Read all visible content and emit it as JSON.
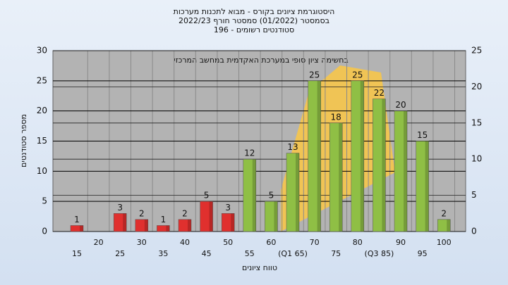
{
  "chart_data": {
    "type": "bar",
    "title": [
      "היסטוגרמת ציונים בקורס - מבוא לתכנות מערכות",
      "בסמסטר  (01/2022)  סמסטר חורף  2022/23",
      "סטודנטים רשומים - 196"
    ],
    "annotation": "בחשימה  ציון סופי במערכת האקדמית במחשב המרכזי",
    "x_label": "טווח ציונים",
    "y_label": "מספר סטודנטים",
    "categories": [
      "15",
      "20",
      "25",
      "30",
      "35",
      "40",
      "45",
      "50",
      "55",
      "60",
      "(Q1 65)",
      "70",
      "75",
      "80",
      "(Q3 85)",
      "90",
      "95",
      "100"
    ],
    "values": [
      1,
      null,
      3,
      2,
      1,
      2,
      5,
      3,
      12,
      5,
      13,
      25,
      18,
      25,
      22,
      20,
      15,
      2
    ],
    "colors": [
      "#e0302e",
      null,
      "#e0302e",
      "#e0302e",
      "#e0302e",
      "#e0302e",
      "#e0302e",
      "#e0302e",
      "#8fbf45",
      "#8fbf45",
      "#8fbf45",
      "#8fbf45",
      "#8fbf45",
      "#8fbf45",
      "#8fbf45",
      "#8fbf45",
      "#8fbf45",
      "#8fbf45"
    ],
    "ylim": [
      0,
      30
    ],
    "yticks": [
      0,
      5,
      10,
      15,
      20,
      25,
      30
    ],
    "y2lim": [
      0,
      25
    ],
    "y2ticks": [
      0,
      5,
      10,
      15,
      20,
      25
    ],
    "grid": true
  }
}
